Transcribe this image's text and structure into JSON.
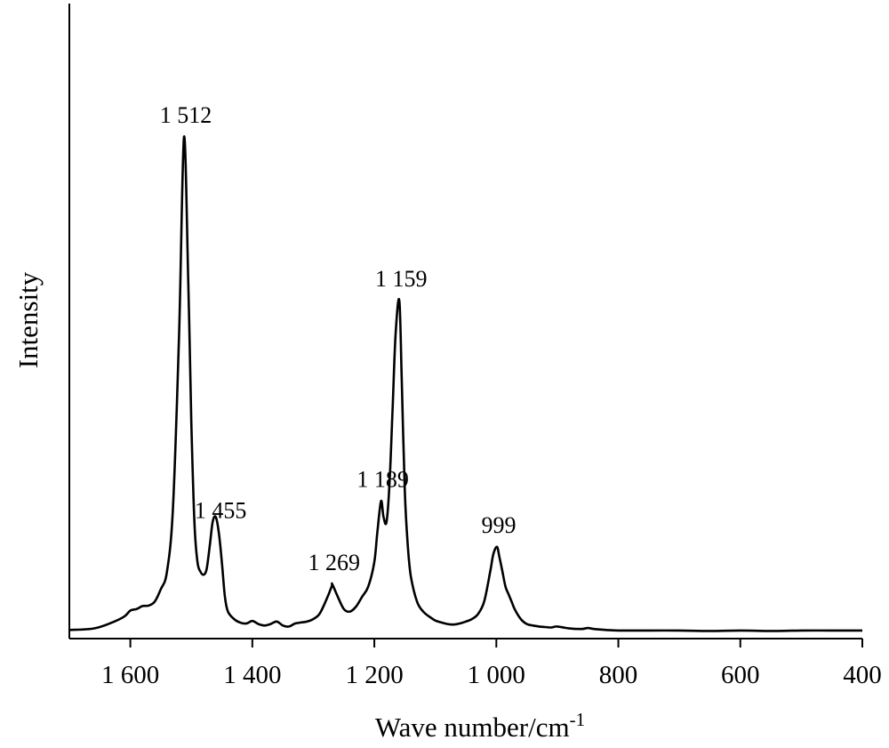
{
  "chart_data": {
    "type": "line",
    "title": "",
    "xlabel": "Wave number/cm",
    "xlabel_superscript": "-1",
    "ylabel": "Intensity",
    "xlim": [
      1700,
      400
    ],
    "ylim": [
      0,
      1.0
    ],
    "x_reversed": true,
    "grid": false,
    "legend": "none",
    "line_color": "#000000",
    "x_ticks": [
      {
        "value": 1600,
        "label": "1 600"
      },
      {
        "value": 1400,
        "label": "1 400"
      },
      {
        "value": 1200,
        "label": "1 200"
      },
      {
        "value": 1000,
        "label": "1 000"
      },
      {
        "value": 800,
        "label": "800"
      },
      {
        "value": 600,
        "label": "600"
      },
      {
        "value": 400,
        "label": "400"
      }
    ],
    "annotations": [
      {
        "x": 1512,
        "y": 0.993,
        "label": "1 512"
      },
      {
        "x": 1455,
        "y": 0.199,
        "label": "1 455"
      },
      {
        "x": 1269,
        "y": 0.095,
        "label": "1 269"
      },
      {
        "x": 1189,
        "y": 0.262,
        "label": "1 189"
      },
      {
        "x": 1159,
        "y": 0.664,
        "label": "1 159"
      },
      {
        "x": 999,
        "y": 0.17,
        "label": "999"
      }
    ],
    "series": [
      {
        "x": [
          1700,
          1660,
          1630,
          1610,
          1600,
          1590,
          1580,
          1570,
          1560,
          1550,
          1540,
          1530,
          1520,
          1512,
          1505,
          1500,
          1495,
          1490,
          1485,
          1480,
          1475,
          1470,
          1465,
          1460,
          1455,
          1450,
          1445,
          1440,
          1430,
          1420,
          1410,
          1400,
          1390,
          1380,
          1370,
          1360,
          1350,
          1340,
          1330,
          1320,
          1310,
          1300,
          1290,
          1280,
          1270,
          1269,
          1260,
          1250,
          1240,
          1230,
          1220,
          1210,
          1200,
          1195,
          1189,
          1185,
          1180,
          1175,
          1170,
          1165,
          1159,
          1155,
          1150,
          1145,
          1140,
          1130,
          1120,
          1110,
          1100,
          1090,
          1080,
          1070,
          1060,
          1050,
          1040,
          1030,
          1020,
          1010,
          1005,
          999,
          995,
          990,
          985,
          980,
          975,
          970,
          960,
          950,
          940,
          930,
          920,
          910,
          900,
          880,
          860,
          850,
          840,
          820,
          800,
          750,
          700,
          650,
          600,
          550,
          500,
          450,
          400
        ],
        "y": [
          0.003,
          0.006,
          0.018,
          0.03,
          0.042,
          0.045,
          0.051,
          0.052,
          0.06,
          0.085,
          0.12,
          0.25,
          0.6,
          0.993,
          0.7,
          0.42,
          0.22,
          0.14,
          0.12,
          0.114,
          0.125,
          0.17,
          0.22,
          0.23,
          0.199,
          0.14,
          0.07,
          0.04,
          0.025,
          0.018,
          0.016,
          0.021,
          0.015,
          0.012,
          0.015,
          0.02,
          0.012,
          0.01,
          0.016,
          0.018,
          0.02,
          0.025,
          0.035,
          0.06,
          0.09,
          0.095,
          0.07,
          0.045,
          0.04,
          0.05,
          0.07,
          0.09,
          0.14,
          0.2,
          0.262,
          0.23,
          0.22,
          0.3,
          0.45,
          0.6,
          0.664,
          0.5,
          0.28,
          0.17,
          0.11,
          0.06,
          0.04,
          0.03,
          0.022,
          0.018,
          0.015,
          0.014,
          0.016,
          0.02,
          0.025,
          0.035,
          0.06,
          0.12,
          0.155,
          0.17,
          0.15,
          0.12,
          0.09,
          0.075,
          0.06,
          0.045,
          0.025,
          0.015,
          0.012,
          0.01,
          0.009,
          0.008,
          0.01,
          0.006,
          0.005,
          0.007,
          0.005,
          0.003,
          0.002,
          0.002,
          0.002,
          0.001,
          0.002,
          0.001,
          0.002,
          0.002,
          0.002
        ]
      }
    ]
  }
}
